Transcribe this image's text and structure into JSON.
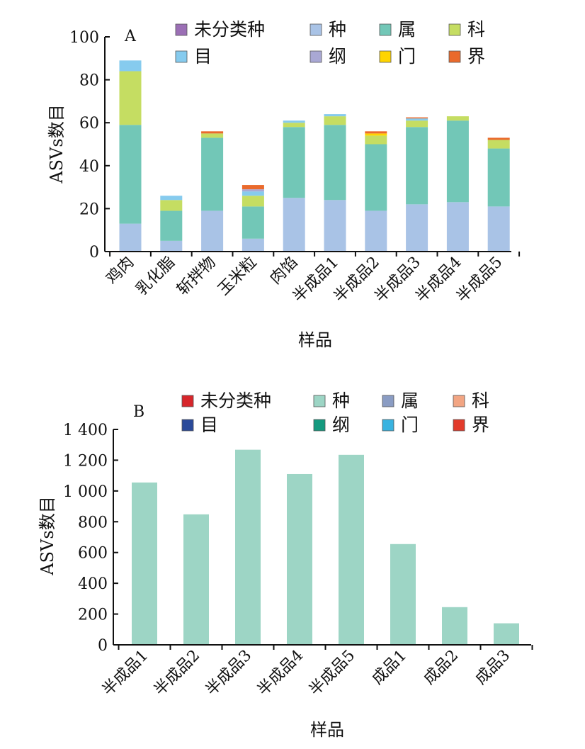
{
  "chart_data": [
    {
      "type": "bar",
      "stacked": true,
      "panel_label": "A",
      "ylabel": "ASVs数目",
      "xlabel": "样品",
      "ylim": [
        0,
        100
      ],
      "yticks": [
        "0",
        "20",
        "40",
        "60",
        "80",
        "100"
      ],
      "categories": [
        "鸡肉",
        "乳化脂",
        "斩拌物",
        "玉米粒",
        "肉馅",
        "半成品1",
        "半成品2",
        "半成品3",
        "半成品4",
        "半成品5"
      ],
      "legend": [
        "未分类种",
        "种",
        "属",
        "科",
        "目",
        "纲",
        "门",
        "界"
      ],
      "legend_colors": [
        "#9b6fb5",
        "#a9c3e6",
        "#72c7b7",
        "#c5dd62",
        "#86cbee",
        "#a9a8d4",
        "#ffd400",
        "#ea6a2c"
      ],
      "series": [
        {
          "name": "未分类种",
          "color": "#9b6fb5",
          "values": [
            0,
            0,
            0,
            0,
            0,
            0,
            0,
            0,
            0,
            0
          ]
        },
        {
          "name": "种",
          "color": "#a9c3e6",
          "values": [
            13,
            5,
            19,
            6,
            25,
            24,
            19,
            22,
            23,
            21
          ]
        },
        {
          "name": "属",
          "color": "#72c7b7",
          "values": [
            46,
            14,
            34,
            15,
            33,
            35,
            31,
            36,
            38,
            27
          ]
        },
        {
          "name": "科",
          "color": "#c5dd62",
          "values": [
            25,
            5,
            2,
            5,
            2,
            4,
            4,
            3,
            2,
            4
          ]
        },
        {
          "name": "目",
          "color": "#86cbee",
          "values": [
            5,
            2,
            0,
            2,
            1,
            1,
            0,
            1,
            0,
            0
          ]
        },
        {
          "name": "纲",
          "color": "#a9a8d4",
          "values": [
            0,
            0,
            0,
            1,
            0,
            0,
            0,
            0,
            0,
            0
          ]
        },
        {
          "name": "门",
          "color": "#ffd400",
          "values": [
            0,
            0,
            0,
            0,
            0,
            0,
            1,
            0,
            0,
            0
          ]
        },
        {
          "name": "界",
          "color": "#ea6a2c",
          "values": [
            0,
            0,
            1,
            2,
            0,
            0,
            1,
            0.5,
            0,
            1
          ]
        }
      ]
    },
    {
      "type": "bar",
      "stacked": true,
      "panel_label": "B",
      "ylabel": "ASVs数目",
      "xlabel": "样品",
      "ylim": [
        0,
        1400
      ],
      "yticks": [
        "0",
        "200",
        "400",
        "600",
        "800",
        "1 000",
        "1 200",
        "1 400"
      ],
      "categories": [
        "半成品1",
        "半成品2",
        "半成品3",
        "半成品4",
        "半成品5",
        "成品1",
        "成品2",
        "成品3"
      ],
      "legend": [
        "未分类种",
        "种",
        "属",
        "科",
        "目",
        "纲",
        "门",
        "界"
      ],
      "legend_colors": [
        "#d7262b",
        "#9dd5c5",
        "#8a9cc3",
        "#f2a583",
        "#2a4a9a",
        "#149a7f",
        "#39b3e0",
        "#e23b2b"
      ],
      "series": [
        {
          "name": "种",
          "color": "#9dd5c5",
          "values": [
            1055,
            848,
            1268,
            1110,
            1235,
            655,
            245,
            140
          ]
        }
      ]
    }
  ]
}
